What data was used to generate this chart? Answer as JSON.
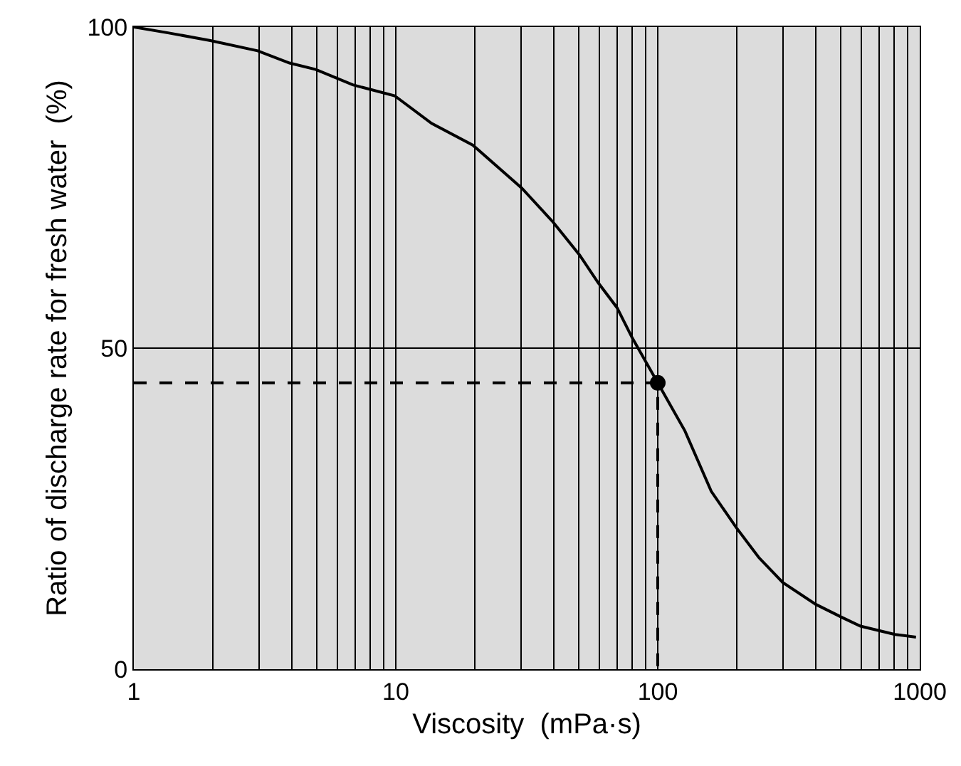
{
  "chart_data": {
    "type": "line",
    "xlabel": "Viscosity  (mPa·s)",
    "ylabel": "Ratio of discharge rate for fresh water  (%)",
    "log": "x",
    "grid": true,
    "line_style": "solid",
    "xlim": [
      1,
      1000
    ],
    "ylim": [
      0,
      100
    ],
    "xticks": [
      1,
      {
        "value": 2,
        "label": null
      },
      {
        "value": 3,
        "label": null
      },
      {
        "value": 4,
        "label": null
      },
      {
        "value": 5,
        "label": null
      },
      {
        "value": 6,
        "label": null
      },
      {
        "value": 7,
        "label": null
      },
      {
        "value": 8,
        "label": null
      },
      {
        "value": 9,
        "label": null
      },
      10,
      {
        "value": 20,
        "label": null
      },
      {
        "value": 30,
        "label": null
      },
      {
        "value": 40,
        "label": null
      },
      {
        "value": 50,
        "label": null
      },
      {
        "value": 60,
        "label": null
      },
      {
        "value": 70,
        "label": null
      },
      {
        "value": 80,
        "label": null
      },
      {
        "value": 90,
        "label": null
      },
      100,
      {
        "value": 200,
        "label": null
      },
      {
        "value": 300,
        "label": null
      },
      {
        "value": 400,
        "label": null
      },
      {
        "value": 500,
        "label": null
      },
      {
        "value": 600,
        "label": null
      },
      {
        "value": 700,
        "label": null
      },
      {
        "value": 800,
        "label": null
      },
      {
        "value": 900,
        "label": null
      },
      1000
    ],
    "yticks": [
      0,
      50,
      100
    ],
    "series": [
      {
        "color": "#000000",
        "marker": "none",
        "x": [
          1,
          1.35,
          1.96,
          2.97,
          3.93,
          4.95,
          6.85,
          9.9,
          13.7,
          19.7,
          30.3,
          39.9,
          50.3,
          59.2,
          69.9,
          79.9,
          100,
          127,
          160,
          199,
          243,
          300,
          401,
          509,
          594,
          805,
          968
        ],
        "values": [
          100,
          99.1,
          97.9,
          96.3,
          94.4,
          93.4,
          91.0,
          89.3,
          85.0,
          81.6,
          74.9,
          69.6,
          64.5,
          60.2,
          56.3,
          51.6,
          44.6,
          37.1,
          27.7,
          22.1,
          17.4,
          13.5,
          10.1,
          8.0,
          6.7,
          5.4,
          5.0
        ]
      },
      {
        "color": "#000000",
        "marker": "none",
        "line_style": "dashed",
        "x": [
          1,
          100,
          100
        ],
        "values": [
          44.6,
          44.6,
          0
        ]
      },
      {
        "type": "scatter",
        "color": "#000000",
        "marker": "circle",
        "x": [
          100
        ],
        "values": [
          44.6
        ]
      }
    ]
  }
}
